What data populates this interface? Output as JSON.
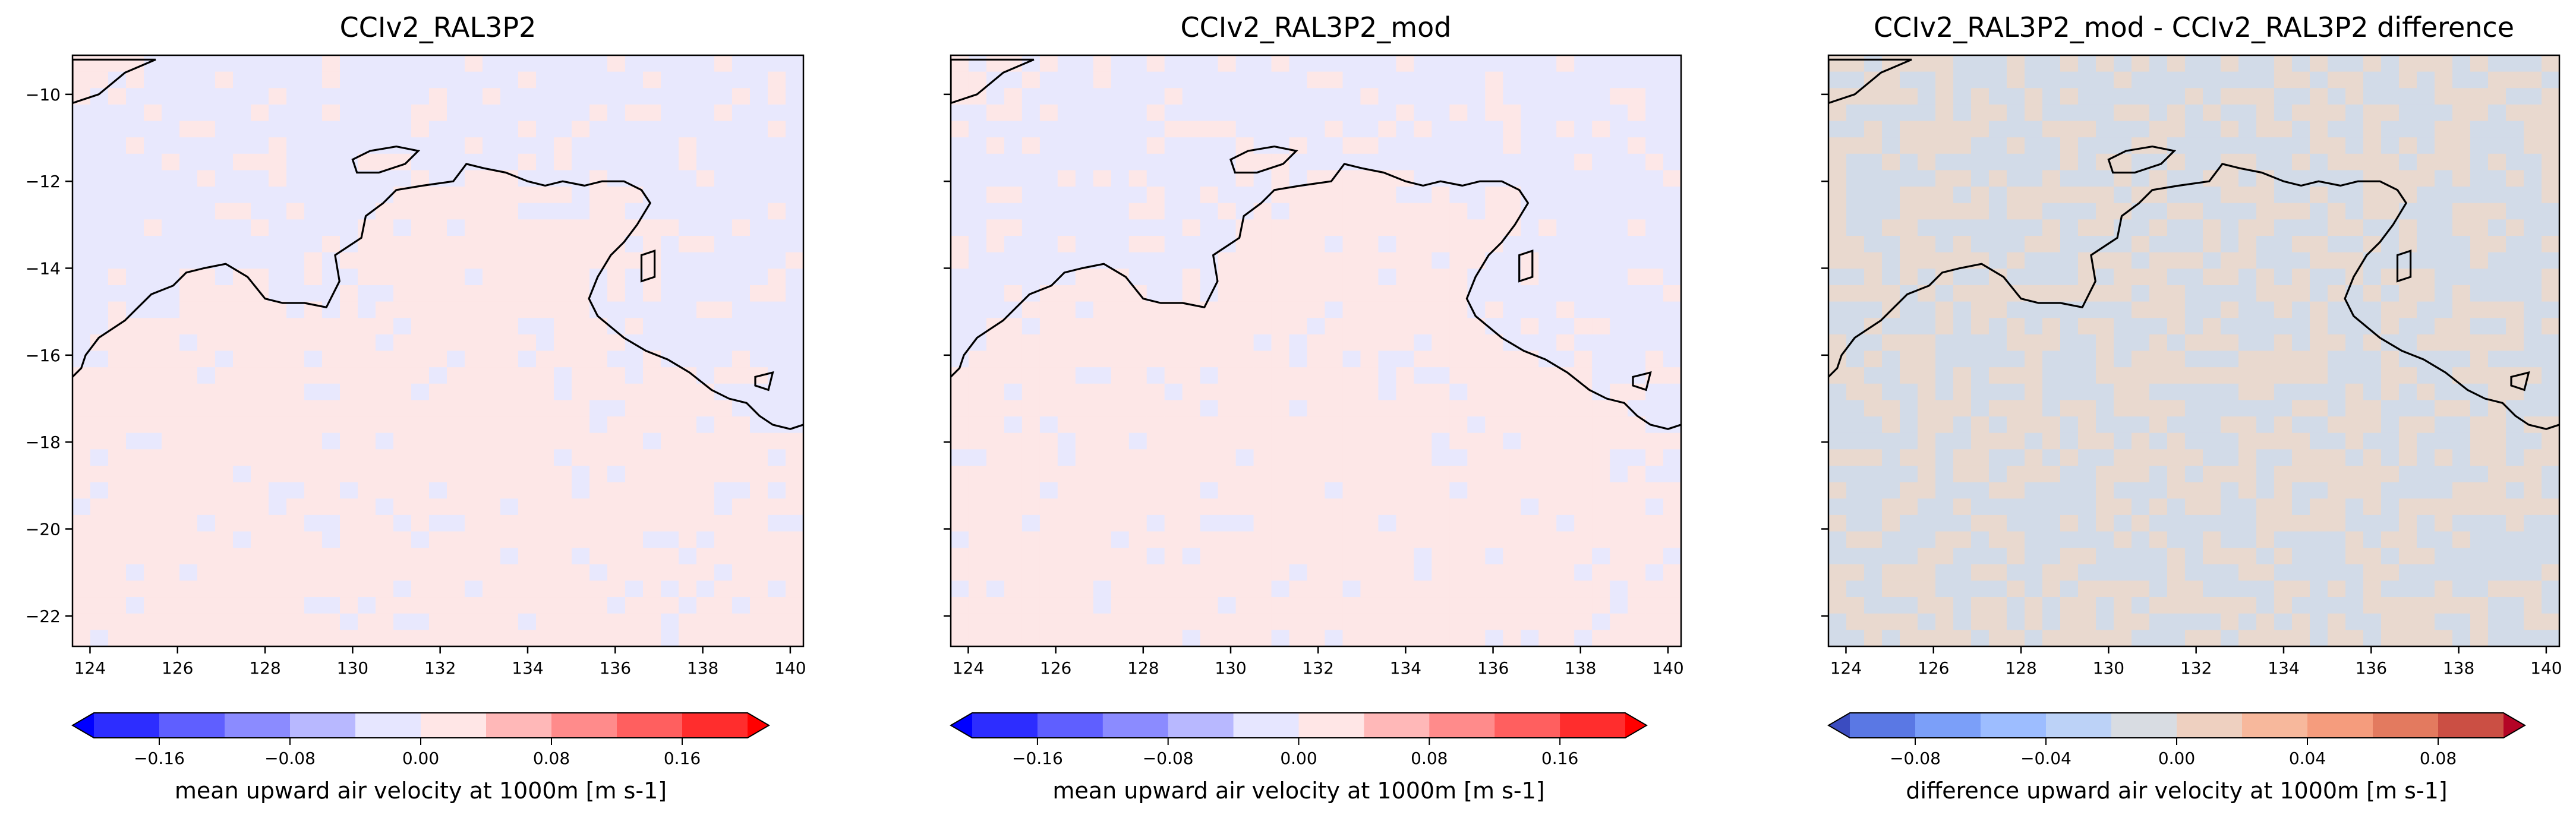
{
  "figure": {
    "panels": [
      {
        "title": "CCIv2_RAL3P2",
        "colormap": "bwr",
        "show_y_tick_labels": true,
        "colorbar_label": "mean upward air velocity at 1000m [m s-1]",
        "colorbar_ticks": [
          "−0.16",
          "−0.08",
          "0.00",
          "0.08",
          "0.16"
        ],
        "colorbar_colors": [
          "#2d2dff",
          "#5f5fff",
          "#8b8bff",
          "#b8b8ff",
          "#e6e6ff",
          "#ffe6e6",
          "#ffb8b8",
          "#ff8b8b",
          "#ff5f5f",
          "#ff2d2d"
        ],
        "colorbar_under": "#0000ff",
        "colorbar_over": "#ff0000",
        "land_tint": "#fde7e7",
        "sea_tint": "#e8e8fd",
        "speckle_tint_land": "#e8e8fd",
        "speckle_tint_sea": "#fde7e7"
      },
      {
        "title": "CCIv2_RAL3P2_mod",
        "colormap": "bwr",
        "show_y_tick_labels": false,
        "colorbar_label": "mean upward air velocity at 1000m [m s-1]",
        "colorbar_ticks": [
          "−0.16",
          "−0.08",
          "0.00",
          "0.08",
          "0.16"
        ],
        "colorbar_colors": [
          "#2d2dff",
          "#5f5fff",
          "#8b8bff",
          "#b8b8ff",
          "#e6e6ff",
          "#ffe6e6",
          "#ffb8b8",
          "#ff8b8b",
          "#ff5f5f",
          "#ff2d2d"
        ],
        "colorbar_under": "#0000ff",
        "colorbar_over": "#ff0000",
        "land_tint": "#fde7e7",
        "sea_tint": "#e8e8fd",
        "speckle_tint_land": "#e8e8fd",
        "speckle_tint_sea": "#fde7e7"
      },
      {
        "title": "CCIv2_RAL3P2_mod - CCIv2_RAL3P2 difference",
        "colormap": "coolwarm",
        "show_y_tick_labels": false,
        "colorbar_label": "difference upward air velocity at 1000m [m s-1]",
        "colorbar_ticks": [
          "−0.08",
          "−0.04",
          "0.00",
          "0.04",
          "0.08"
        ],
        "colorbar_colors": [
          "#5a78e4",
          "#7b9ff9",
          "#9dbdff",
          "#bcd2f7",
          "#d8dce2",
          "#eed0c0",
          "#f7b89c",
          "#f59c7d",
          "#e37a5f",
          "#cb4f44"
        ],
        "colorbar_under": "#3b4cc0",
        "colorbar_over": "#b40426",
        "land_tint": "#e9d9cf",
        "sea_tint": "#d2dbe8",
        "speckle_tint_land": "#d2dbe8",
        "speckle_tint_sea": "#e9d9cf"
      }
    ]
  },
  "chart_data": {
    "type": "heatmap",
    "map_extent": {
      "lon": [
        123.6,
        140.3
      ],
      "lat": [
        -22.7,
        -9.1
      ]
    },
    "x_ticks": [
      "124",
      "126",
      "128",
      "130",
      "132",
      "134",
      "136",
      "138",
      "140"
    ],
    "x_tick_values": [
      124,
      126,
      128,
      130,
      132,
      134,
      136,
      138,
      140
    ],
    "y_ticks": [
      "−10",
      "−12",
      "−14",
      "−16",
      "−18",
      "−20",
      "−22"
    ],
    "y_tick_values": [
      -10,
      -12,
      -14,
      -16,
      -18,
      -20,
      -22
    ],
    "coastline_lonlat": [
      [
        123.6,
        -16.5
      ],
      [
        123.8,
        -16.3
      ],
      [
        123.9,
        -16.0
      ],
      [
        124.2,
        -15.6
      ],
      [
        124.5,
        -15.4
      ],
      [
        124.8,
        -15.2
      ],
      [
        125.1,
        -14.9
      ],
      [
        125.4,
        -14.6
      ],
      [
        125.9,
        -14.4
      ],
      [
        126.2,
        -14.1
      ],
      [
        126.6,
        -14.0
      ],
      [
        127.1,
        -13.9
      ],
      [
        127.6,
        -14.2
      ],
      [
        128.0,
        -14.7
      ],
      [
        128.4,
        -14.8
      ],
      [
        128.9,
        -14.8
      ],
      [
        129.4,
        -14.9
      ],
      [
        129.7,
        -14.3
      ],
      [
        129.6,
        -13.7
      ],
      [
        130.2,
        -13.3
      ],
      [
        130.3,
        -12.8
      ],
      [
        130.7,
        -12.5
      ],
      [
        131.0,
        -12.2
      ],
      [
        131.6,
        -12.1
      ],
      [
        132.3,
        -12.0
      ],
      [
        132.6,
        -11.6
      ],
      [
        133.0,
        -11.7
      ],
      [
        133.5,
        -11.8
      ],
      [
        134.0,
        -12.0
      ],
      [
        134.4,
        -12.1
      ],
      [
        134.8,
        -12.0
      ],
      [
        135.3,
        -12.1
      ],
      [
        135.7,
        -12.0
      ],
      [
        136.2,
        -12.0
      ],
      [
        136.6,
        -12.2
      ],
      [
        136.8,
        -12.5
      ],
      [
        136.5,
        -13.0
      ],
      [
        136.2,
        -13.4
      ],
      [
        135.9,
        -13.7
      ],
      [
        135.6,
        -14.2
      ],
      [
        135.4,
        -14.7
      ],
      [
        135.6,
        -15.1
      ],
      [
        136.2,
        -15.6
      ],
      [
        136.7,
        -15.9
      ],
      [
        137.2,
        -16.1
      ],
      [
        137.7,
        -16.4
      ],
      [
        138.2,
        -16.8
      ],
      [
        138.6,
        -17.0
      ],
      [
        139.0,
        -17.1
      ],
      [
        139.3,
        -17.4
      ],
      [
        139.6,
        -17.6
      ],
      [
        140.0,
        -17.7
      ],
      [
        140.3,
        -17.6
      ]
    ],
    "islands_lonlat": [
      [
        [
          130.0,
          -11.5
        ],
        [
          130.4,
          -11.3
        ],
        [
          131.0,
          -11.2
        ],
        [
          131.5,
          -11.3
        ],
        [
          131.2,
          -11.6
        ],
        [
          130.6,
          -11.8
        ],
        [
          130.1,
          -11.8
        ],
        [
          130.0,
          -11.5
        ]
      ],
      [
        [
          136.6,
          -13.7
        ],
        [
          136.9,
          -13.6
        ],
        [
          136.9,
          -14.2
        ],
        [
          136.6,
          -14.3
        ],
        [
          136.6,
          -13.7
        ]
      ],
      [
        [
          139.2,
          -16.5
        ],
        [
          139.6,
          -16.4
        ],
        [
          139.5,
          -16.8
        ],
        [
          139.2,
          -16.7
        ],
        [
          139.2,
          -16.5
        ]
      ],
      [
        [
          123.6,
          -10.2
        ],
        [
          124.2,
          -10.0
        ],
        [
          124.8,
          -9.5
        ],
        [
          125.5,
          -9.2
        ],
        [
          123.6,
          -9.2
        ]
      ]
    ]
  }
}
